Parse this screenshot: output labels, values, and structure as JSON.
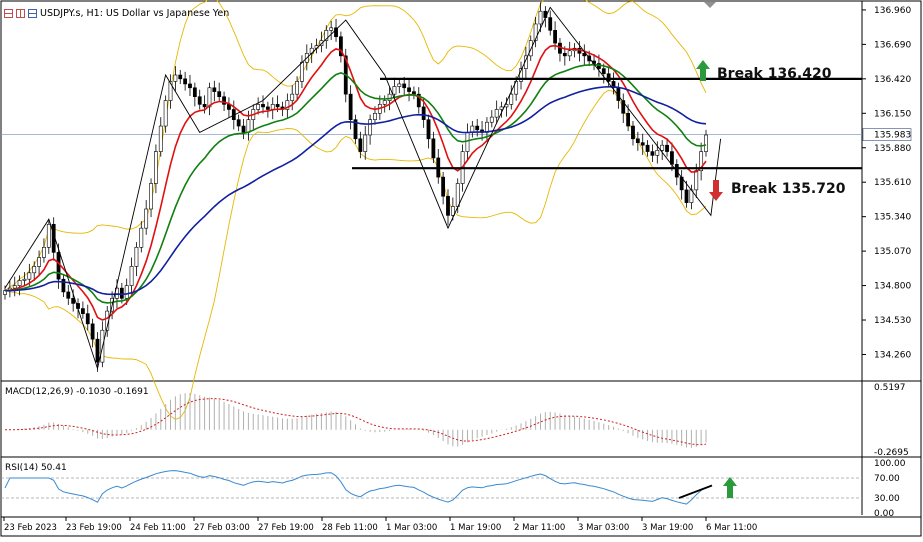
{
  "header": {
    "symbol": "USDJPY.s, H1:",
    "description": "US Dollar vs Japanese Yen"
  },
  "colors": {
    "candle_outline": "#000000",
    "bollinger": "#e6b800",
    "ma_fast": "#e01010",
    "ma_mid": "#108010",
    "ma_slow": "#1020a0",
    "zigzag": "#000000",
    "macd_hist": "#b0b0b0",
    "macd_signal": "#d02020",
    "rsi_line": "#3a8ad0",
    "arrow_up": "#2a9a3a",
    "arrow_down": "#d03030",
    "current_price_line": "#8aa0c8"
  },
  "annotations": {
    "break_up": "Break 136.420",
    "break_down": "Break 135.720"
  },
  "chart_data": [
    {
      "type": "candlestick",
      "panel": "price",
      "ylim": [
        134.06,
        137.03
      ],
      "y_ticks": [
        "136.960",
        "136.690",
        "136.420",
        "136.150",
        "135.880",
        "135.610",
        "135.340",
        "135.070",
        "134.800",
        "134.530",
        "134.260"
      ],
      "y_tick_values": [
        136.96,
        136.69,
        136.42,
        136.15,
        135.88,
        135.61,
        135.34,
        135.07,
        134.8,
        134.53,
        134.26
      ],
      "current_price": "135.983",
      "current_price_value": 135.983,
      "x_ticks": [
        "23 Feb 2023",
        "23 Feb 19:00",
        "24 Feb 11:00",
        "27 Feb 03:00",
        "27 Feb 19:00",
        "28 Feb 11:00",
        "1 Mar 03:00",
        "1 Mar 19:00",
        "2 Mar 11:00",
        "3 Mar 03:00",
        "3 Mar 19:00",
        "6 Mar 11:00"
      ],
      "close_path": [
        134.76,
        134.78,
        134.8,
        134.84,
        134.85,
        134.9,
        134.95,
        135.02,
        135.1,
        135.28,
        135.06,
        134.85,
        134.75,
        134.7,
        134.66,
        134.62,
        134.58,
        134.5,
        134.38,
        134.2,
        134.45,
        134.6,
        134.7,
        134.78,
        134.7,
        134.8,
        134.95,
        135.1,
        135.25,
        135.4,
        135.6,
        135.85,
        136.05,
        136.25,
        136.4,
        136.45,
        136.42,
        136.38,
        136.35,
        136.28,
        136.22,
        136.2,
        136.35,
        136.32,
        136.28,
        136.22,
        136.18,
        136.1,
        136.05,
        136.0,
        136.1,
        136.18,
        136.22,
        136.2,
        136.18,
        136.22,
        136.2,
        136.18,
        136.25,
        136.3,
        136.4,
        136.55,
        136.62,
        136.66,
        136.68,
        136.72,
        136.8,
        136.82,
        136.75,
        136.6,
        136.3,
        136.1,
        135.95,
        135.85,
        135.98,
        136.1,
        136.15,
        136.22,
        136.25,
        136.3,
        136.36,
        136.38,
        136.35,
        136.32,
        136.3,
        136.2,
        136.1,
        135.95,
        135.8,
        135.65,
        135.5,
        135.35,
        135.42,
        135.6,
        135.85,
        136.0,
        136.05,
        136.02,
        136.0,
        136.08,
        136.12,
        136.18,
        136.2,
        136.22,
        136.3,
        136.4,
        136.5,
        136.6,
        136.72,
        136.85,
        136.95,
        136.9,
        136.8,
        136.7,
        136.62,
        136.6,
        136.64,
        136.66,
        136.62,
        136.6,
        136.56,
        136.54,
        136.5,
        136.46,
        136.4,
        136.35,
        136.25,
        136.15,
        136.05,
        135.95,
        135.92,
        135.9,
        135.85,
        135.82,
        135.86,
        135.9,
        135.85,
        135.75,
        135.65,
        135.55,
        135.45,
        135.55,
        135.7,
        135.85,
        135.98
      ],
      "zigzag": [
        [
          0,
          134.78
        ],
        [
          9,
          135.32
        ],
        [
          19,
          134.15
        ],
        [
          33,
          136.45
        ],
        [
          40,
          136.0
        ],
        [
          53,
          136.25
        ],
        [
          70,
          136.88
        ],
        [
          78,
          136.45
        ],
        [
          91,
          135.25
        ],
        [
          112,
          136.98
        ],
        [
          145,
          135.35
        ],
        [
          147,
          135.95
        ]
      ],
      "horizontal_levels": [
        136.42,
        135.72
      ],
      "legend": "top-left"
    },
    {
      "type": "histogram+line",
      "panel": "macd",
      "title": "MACD(12,26,9) -0.1030 -0.1691",
      "macd_value": -0.103,
      "signal_value": -0.1691,
      "ylim": [
        -0.2695,
        0.5197
      ],
      "y_ticks": [
        "0.5197",
        "-0.2695"
      ],
      "y_tick_values": [
        0.5197,
        -0.2695
      ]
    },
    {
      "type": "line",
      "panel": "rsi",
      "title": "RSI(14) 50.41",
      "rsi_value": 50.41,
      "ylim": [
        0,
        100
      ],
      "y_ticks": [
        "100.00",
        "70.00",
        "30.00",
        "0.00"
      ],
      "y_tick_values": [
        100,
        70,
        30,
        0
      ],
      "levels": [
        70,
        30
      ]
    }
  ]
}
